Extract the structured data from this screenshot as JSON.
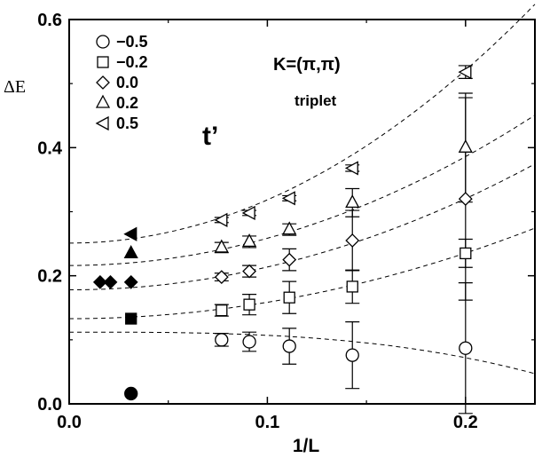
{
  "chart_data": {
    "type": "scatter",
    "xlabel": "1/L",
    "ylabel": "ΔE",
    "xlim": [
      0.0,
      0.235
    ],
    "ylim": [
      0.0,
      0.6
    ],
    "xticks": [
      0.0,
      0.1,
      0.2
    ],
    "xtick_labels": [
      "0.0",
      "0.1",
      "0.2"
    ],
    "yticks": [
      0.0,
      0.2,
      0.4,
      0.6
    ],
    "ytick_labels": [
      "0.0",
      "0.2",
      "0.4",
      "0.6"
    ],
    "grid": false,
    "legend_title": "t’",
    "legend_position": "top-left",
    "annotation": {
      "k": "K=(π,π)",
      "sub": "triplet"
    },
    "series": [
      {
        "name": "−0.5",
        "marker": "circle",
        "points": [
          {
            "x": 0.0769,
            "y": 0.1,
            "err": 0.01
          },
          {
            "x": 0.0909,
            "y": 0.097,
            "err": 0.015
          },
          {
            "x": 0.1111,
            "y": 0.09,
            "err": 0.028
          },
          {
            "x": 0.1429,
            "y": 0.076,
            "err": 0.052
          },
          {
            "x": 0.2,
            "y": 0.087,
            "err": 0.102
          }
        ],
        "fit": [
          0.112,
          0.0,
          -5.0
        ],
        "extrapolated": {
          "x": 0.0312,
          "y": 0.016
        }
      },
      {
        "name": "−0.2",
        "marker": "square",
        "points": [
          {
            "x": 0.0769,
            "y": 0.146,
            "err": 0.009
          },
          {
            "x": 0.0909,
            "y": 0.155,
            "err": 0.016
          },
          {
            "x": 0.1111,
            "y": 0.166,
            "err": 0.025
          },
          {
            "x": 0.1429,
            "y": 0.183,
            "err": 0.026
          },
          {
            "x": 0.2,
            "y": 0.235,
            "err": 0.022
          }
        ],
        "fit": [
          0.133,
          2.56,
          0.0
        ],
        "extrapolated": {
          "x": 0.0312,
          "y": 0.133
        }
      },
      {
        "name": "0.0",
        "marker": "diamond",
        "points": [
          {
            "x": 0.0769,
            "y": 0.198,
            "err": 0.006
          },
          {
            "x": 0.0909,
            "y": 0.207,
            "err": 0.009
          },
          {
            "x": 0.1111,
            "y": 0.225,
            "err": 0.017
          },
          {
            "x": 0.1429,
            "y": 0.255,
            "err": 0.047
          },
          {
            "x": 0.2,
            "y": 0.32,
            "err": 0.158
          }
        ],
        "fit": [
          0.178,
          3.56,
          0.0
        ],
        "extrapolated": [
          {
            "x": 0.0156,
            "y": 0.19
          },
          {
            "x": 0.0208,
            "y": 0.19
          },
          {
            "x": 0.0312,
            "y": 0.19
          }
        ]
      },
      {
        "name": "0.2",
        "marker": "triangle-up",
        "points": [
          {
            "x": 0.0769,
            "y": 0.244,
            "err": 0.008
          },
          {
            "x": 0.0909,
            "y": 0.253,
            "err": 0.009
          },
          {
            "x": 0.1111,
            "y": 0.272,
            "err": 0.009
          },
          {
            "x": 0.1429,
            "y": 0.314,
            "err": 0.022
          },
          {
            "x": 0.2,
            "y": 0.4,
            "err": 0.085
          }
        ],
        "fit": [
          0.216,
          4.25,
          0.0
        ],
        "extrapolated": {
          "x": 0.0312,
          "y": 0.235
        }
      },
      {
        "name": "0.5",
        "marker": "triangle-left",
        "points": [
          {
            "x": 0.0769,
            "y": 0.287,
            "err": 0.004
          },
          {
            "x": 0.0909,
            "y": 0.298,
            "err": 0.004
          },
          {
            "x": 0.1111,
            "y": 0.321,
            "err": 0.004
          },
          {
            "x": 0.1429,
            "y": 0.368,
            "err": 0.005
          },
          {
            "x": 0.2,
            "y": 0.518,
            "err": 0.01
          }
        ],
        "fit": [
          0.251,
          6.75,
          0.0
        ],
        "extrapolated": {
          "x": 0.0312,
          "y": 0.265
        }
      }
    ]
  }
}
